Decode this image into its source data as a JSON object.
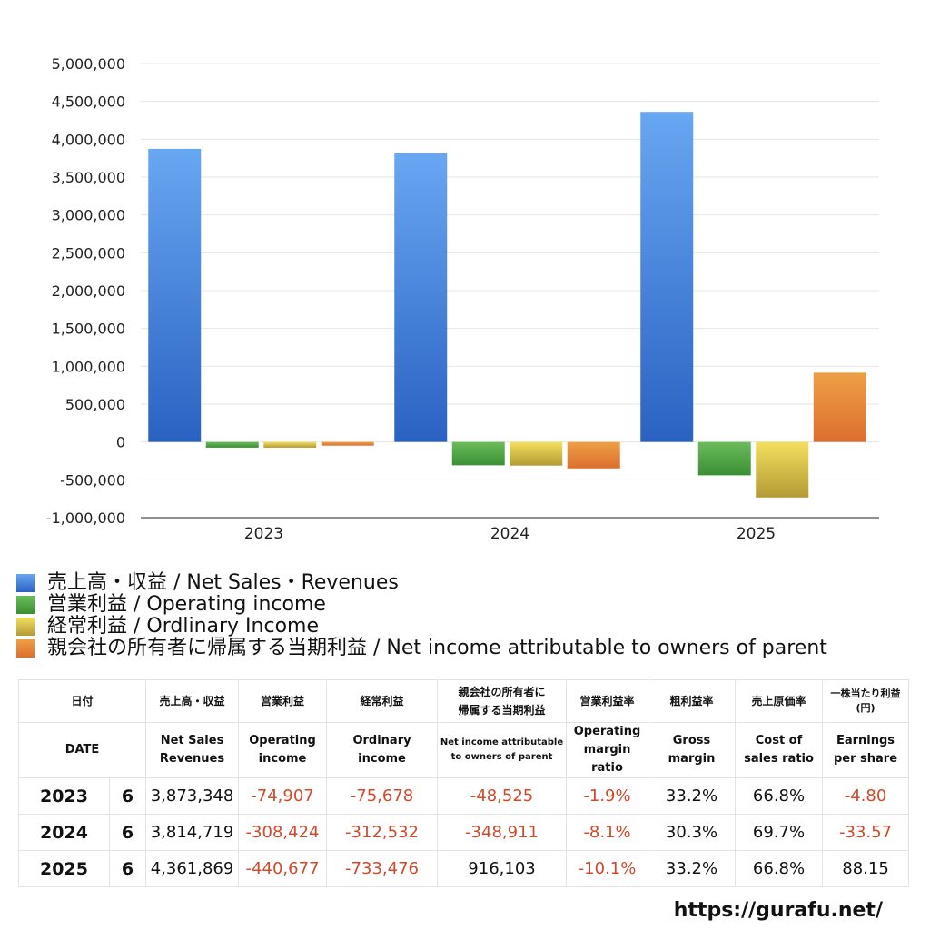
{
  "chart_data": {
    "type": "bar",
    "categories": [
      "2023",
      "2024",
      "2025"
    ],
    "series": [
      {
        "name": "売上高・収益 / Net Sales・Revenues",
        "values": [
          3873348,
          3814719,
          4361869
        ]
      },
      {
        "name": "営業利益 / Operating income",
        "values": [
          -74907,
          -308424,
          -440677
        ]
      },
      {
        "name": "経常利益 / Ordlinary Income",
        "values": [
          -75678,
          -312532,
          -733476
        ]
      },
      {
        "name": "親会社の所有者に帰属する当期利益 / Net income attributable to owners of parent",
        "values": [
          -48525,
          -348911,
          916103
        ]
      }
    ],
    "ylim": [
      -1000000,
      5000000
    ],
    "yticks": [
      "5,000,000",
      "4,500,000",
      "4,000,000",
      "3,500,000",
      "3,000,000",
      "2,500,000",
      "2,000,000",
      "1,500,000",
      "1,000,000",
      "500,000",
      "0",
      "-500,000",
      "-1,000,000"
    ],
    "grid": true,
    "legend_position": "bottom",
    "colors": {
      "series0": [
        "#68a7f2",
        "#2a62c2"
      ],
      "series1": [
        "#6bbd5b",
        "#3a8f34"
      ],
      "series2": [
        "#f3df5f",
        "#b49a35"
      ],
      "series3": [
        "#eda046",
        "#dc6e2e"
      ]
    }
  },
  "legend": [
    {
      "label": "売上高・収益 / Net Sales・Revenues",
      "color": "#3f7fdc"
    },
    {
      "label": "営業利益 / Operating income",
      "color": "#4fa445"
    },
    {
      "label": "経常利益 / Ordlinary Income",
      "color": "#dcc548"
    },
    {
      "label": "親会社の所有者に帰属する当期利益 / Net income attributable to owners of parent",
      "color": "#e4843a"
    }
  ],
  "table": {
    "header_jp": {
      "date": "日付",
      "sales": "売上高・収益",
      "operating": "営業利益",
      "ordinary": "経常利益",
      "net_line1": "親会社の所有者に",
      "net_line2": "帰属する当期利益",
      "op_margin": "営業利益率",
      "gross": "粗利益率",
      "cost": "売上原価率",
      "eps_line1": "一株当たり利益",
      "eps_line2": "(円)"
    },
    "header_en": {
      "date": "DATE",
      "sales_line1": "Net Sales",
      "sales_line2": "Revenues",
      "operating_line1": "Operating",
      "operating_line2": "income",
      "ordinary_line1": "Ordinary",
      "ordinary_line2": "income",
      "net_line1": "Net income attributable",
      "net_line2": "to owners of parent",
      "op_margin_line1": "Operating",
      "op_margin_line2": "margin",
      "op_margin_line3": "ratio",
      "gross_line1": "Gross",
      "gross_line2": "margin",
      "cost_line1": "Cost of",
      "cost_line2": "sales ratio",
      "eps_line1": "Earnings",
      "eps_line2": "per share"
    },
    "rows": [
      {
        "year": "2023",
        "month": "6",
        "sales": "3,873,348",
        "operating": "-74,907",
        "ordinary": "-75,678",
        "net": "-48,525",
        "op_margin": "-1.9%",
        "gross": "33.2%",
        "cost": "66.8%",
        "eps": "-4.80"
      },
      {
        "year": "2024",
        "month": "6",
        "sales": "3,814,719",
        "operating": "-308,424",
        "ordinary": "-312,532",
        "net": "-348,911",
        "op_margin": "-8.1%",
        "gross": "30.3%",
        "cost": "69.7%",
        "eps": "-33.57"
      },
      {
        "year": "2025",
        "month": "6",
        "sales": "4,361,869",
        "operating": "-440,677",
        "ordinary": "-733,476",
        "net": "916,103",
        "op_margin": "-10.1%",
        "gross": "33.2%",
        "cost": "66.8%",
        "eps": "88.15"
      }
    ]
  },
  "footer": {
    "url": "https://gurafu.net/"
  }
}
